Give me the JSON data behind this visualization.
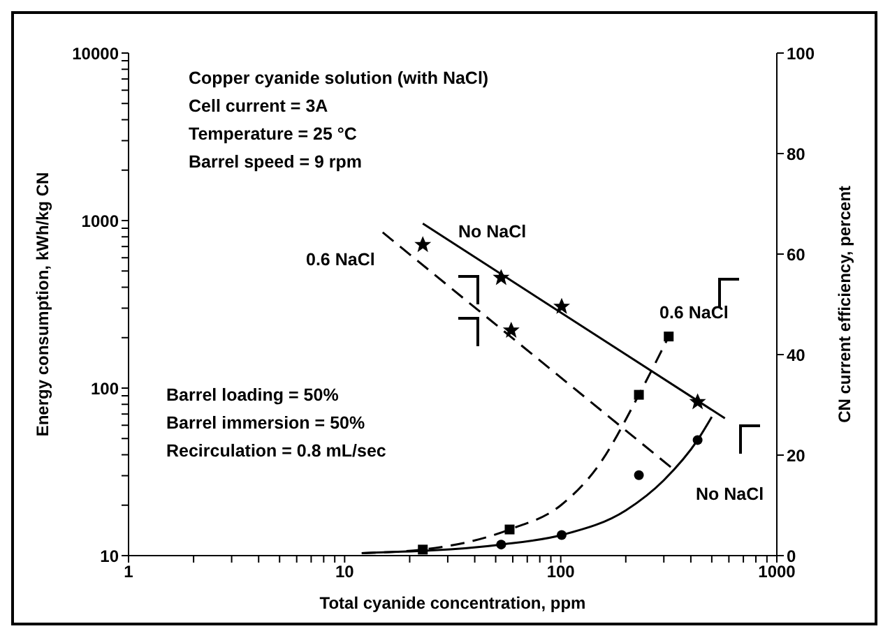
{
  "chart_data": {
    "type": "line",
    "xlabel": "Total cyanide concentration, ppm",
    "ylabel": "Energy consumption, kWh/kg CN",
    "y2label": "CN current efficiency, percent",
    "log": "xy",
    "xlim": [
      1,
      1000
    ],
    "xticks": [
      1,
      {
        "value": 2,
        "label": null
      },
      {
        "value": 3,
        "label": null
      },
      {
        "value": 4,
        "label": null
      },
      {
        "value": 5,
        "label": null
      },
      {
        "value": 6,
        "label": null
      },
      {
        "value": 7,
        "label": null
      },
      {
        "value": 8,
        "label": null
      },
      {
        "value": 9,
        "label": null
      },
      10,
      {
        "value": 20,
        "label": null
      },
      {
        "value": 30,
        "label": null
      },
      {
        "value": 40,
        "label": null
      },
      {
        "value": 50,
        "label": null
      },
      {
        "value": 60,
        "label": null
      },
      {
        "value": 70,
        "label": null
      },
      {
        "value": 80,
        "label": null
      },
      {
        "value": 90,
        "label": null
      },
      100,
      {
        "value": 200,
        "label": null
      },
      {
        "value": 300,
        "label": null
      },
      {
        "value": 400,
        "label": null
      },
      {
        "value": 500,
        "label": null
      },
      {
        "value": 600,
        "label": null
      },
      {
        "value": 700,
        "label": null
      },
      {
        "value": 800,
        "label": null
      },
      {
        "value": 900,
        "label": null
      },
      1000
    ],
    "ylim": [
      10,
      10000
    ],
    "yticks": [
      10,
      {
        "value": 20,
        "label": null
      },
      {
        "value": 30,
        "label": null
      },
      {
        "value": 40,
        "label": null
      },
      {
        "value": 50,
        "label": null
      },
      {
        "value": 60,
        "label": null
      },
      {
        "value": 70,
        "label": null
      },
      {
        "value": 80,
        "label": null
      },
      {
        "value": 90,
        "label": null
      },
      100,
      {
        "value": 200,
        "label": null
      },
      {
        "value": 300,
        "label": null
      },
      {
        "value": 400,
        "label": null
      },
      {
        "value": 500,
        "label": null
      },
      {
        "value": 600,
        "label": null
      },
      {
        "value": 700,
        "label": null
      },
      {
        "value": 800,
        "label": null
      },
      {
        "value": 900,
        "label": null
      },
      1000,
      {
        "value": 2000,
        "label": null
      },
      {
        "value": 3000,
        "label": null
      },
      {
        "value": 4000,
        "label": null
      },
      {
        "value": 5000,
        "label": null
      },
      {
        "value": 6000,
        "label": null
      },
      {
        "value": 7000,
        "label": null
      },
      {
        "value": 8000,
        "label": null
      },
      {
        "value": 9000,
        "label": null
      },
      10000
    ],
    "y2lim": [
      0,
      100
    ],
    "y2ticks": [
      0,
      20,
      40,
      60,
      80,
      100
    ],
    "series": [
      {
        "color": "#000000",
        "line_style": "solid",
        "marker": "none",
        "x": [
          23,
          575
        ],
        "values": [
          960,
          66
        ]
      },
      {
        "color": "#000000",
        "line_style": "dashed",
        "marker": "none",
        "x": [
          15,
          330
        ],
        "values": [
          850,
          33
        ]
      },
      {
        "type": "scatter",
        "color": "#000000",
        "marker": "star",
        "x": [
          53,
          101,
          430
        ],
        "values": [
          458,
          308,
          83
        ]
      },
      {
        "type": "scatter",
        "color": "#000000",
        "marker": "star",
        "x": [
          23,
          59
        ],
        "values": [
          720,
          222
        ]
      },
      {
        "type": "line",
        "axis": "y2",
        "color": "#000000",
        "line_style": "solid",
        "marker": "none",
        "x": [
          12,
          53,
          101,
          200,
          300,
          430,
          500
        ],
        "values": [
          0.5,
          2.2,
          4.1,
          9,
          15,
          23,
          27.6
        ]
      },
      {
        "type": "scatter",
        "axis": "y2",
        "color": "#000000",
        "marker": "circle",
        "x": [
          53,
          101,
          230,
          430
        ],
        "values": [
          2.2,
          4.1,
          16,
          23
        ]
      },
      {
        "type": "line",
        "axis": "y2",
        "color": "#000000",
        "line_style": "dashed",
        "marker": "none",
        "x": [
          12,
          23,
          58,
          100,
          150,
          230,
          316
        ],
        "values": [
          0.5,
          1.2,
          5.2,
          10,
          18,
          32,
          43.6
        ]
      },
      {
        "type": "scatter",
        "axis": "y2",
        "color": "#000000",
        "marker": "square",
        "x": [
          23,
          58,
          230,
          316
        ],
        "values": [
          1.2,
          5.2,
          32,
          43.6
        ]
      }
    ],
    "annotations": [
      "Copper cyanide solution (with NaCl)",
      "Cell current = 3A",
      "Temperature = 25 °C",
      "Barrel speed = 9 rpm",
      "Barrel loading = 50%",
      "Barrel immersion = 50%",
      "Recirculation = 0.8 mL/sec",
      "No NaCl",
      "0.6 NaCl",
      "0.6 NaCl",
      "No NaCl"
    ]
  }
}
